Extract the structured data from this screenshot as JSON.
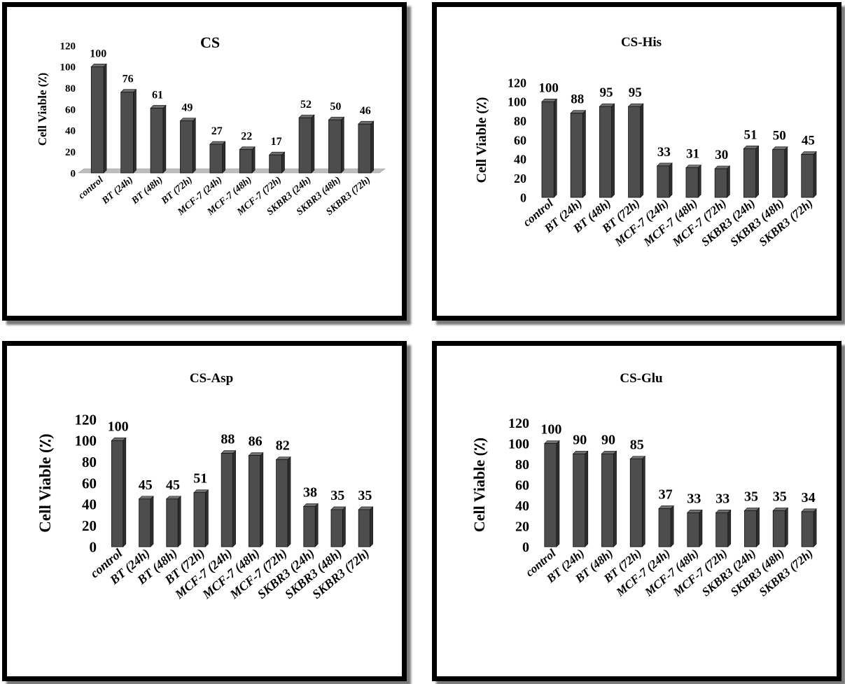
{
  "chart_data": [
    {
      "type": "bar",
      "title": "CS",
      "ylabel": "Cell Viable (٪)",
      "ylim": [
        0,
        120
      ],
      "yticks": [
        0,
        20,
        40,
        60,
        80,
        100,
        120
      ],
      "categories": [
        "control",
        "BT (24h)",
        "BT (48h)",
        "BT (72h)",
        "MCF-7 (24h)",
        "MCF-7 (48h)",
        "MCF-7 (72h)",
        "SKBR3 (24h)",
        "SKBR3 (48h)",
        "SKBR3 (72h)"
      ],
      "values": [
        100,
        76,
        61,
        49,
        27,
        22,
        17,
        52,
        50,
        46
      ],
      "bar_color": "#4d4d4d",
      "grid": false,
      "legend": "none"
    },
    {
      "type": "bar",
      "title": "CS-His",
      "ylabel": "Cell Viable (٪)",
      "ylim": [
        0,
        120
      ],
      "yticks": [
        0,
        20,
        40,
        60,
        80,
        100,
        120
      ],
      "categories": [
        "control",
        "BT (24h)",
        "BT (48h)",
        "BT (72h)",
        "MCF-7 (24h)",
        "MCF-7 (48h)",
        "MCF-7 (72h)",
        "SKBR3 (24h)",
        "SKBR3 (48h)",
        "SKBR3 (72h)"
      ],
      "values": [
        100,
        88,
        95,
        95,
        33,
        31,
        30,
        51,
        50,
        45
      ],
      "bar_color": "#4d4d4d",
      "grid": false,
      "legend": "none"
    },
    {
      "type": "bar",
      "title": "CS-Asp",
      "ylabel": "Cell Viable (٪)",
      "ylim": [
        0,
        120
      ],
      "yticks": [
        0,
        20,
        40,
        60,
        80,
        100,
        120
      ],
      "categories": [
        "control",
        "BT (24h)",
        "BT (48h)",
        "BT (72h)",
        "MCF-7 (24h)",
        "MCF-7 (48h)",
        "MCF-7 (72h)",
        "SKBR3 (24h)",
        "SKBR3 (48h)",
        "SKBR3 (72h)"
      ],
      "values": [
        100,
        45,
        45,
        51,
        88,
        86,
        82,
        38,
        35,
        35
      ],
      "bar_color": "#4d4d4d",
      "grid": false,
      "legend": "none"
    },
    {
      "type": "bar",
      "title": "CS-Glu",
      "ylabel": "Cell Viable (٪)",
      "ylim": [
        0,
        120
      ],
      "yticks": [
        0,
        20,
        40,
        60,
        80,
        100,
        120
      ],
      "categories": [
        "control",
        "BT (24h)",
        "BT (48h)",
        "BT (72h)",
        "MCF-7 (24h)",
        "MCF-7 (48h)",
        "MCF-7 (72h)",
        "SKBR3 (24h)",
        "SKBR3 (48h)",
        "SKBR3 (72h)"
      ],
      "values": [
        100,
        90,
        90,
        85,
        37,
        33,
        33,
        35,
        35,
        34
      ],
      "bar_color": "#4d4d4d",
      "grid": false,
      "legend": "none"
    }
  ]
}
